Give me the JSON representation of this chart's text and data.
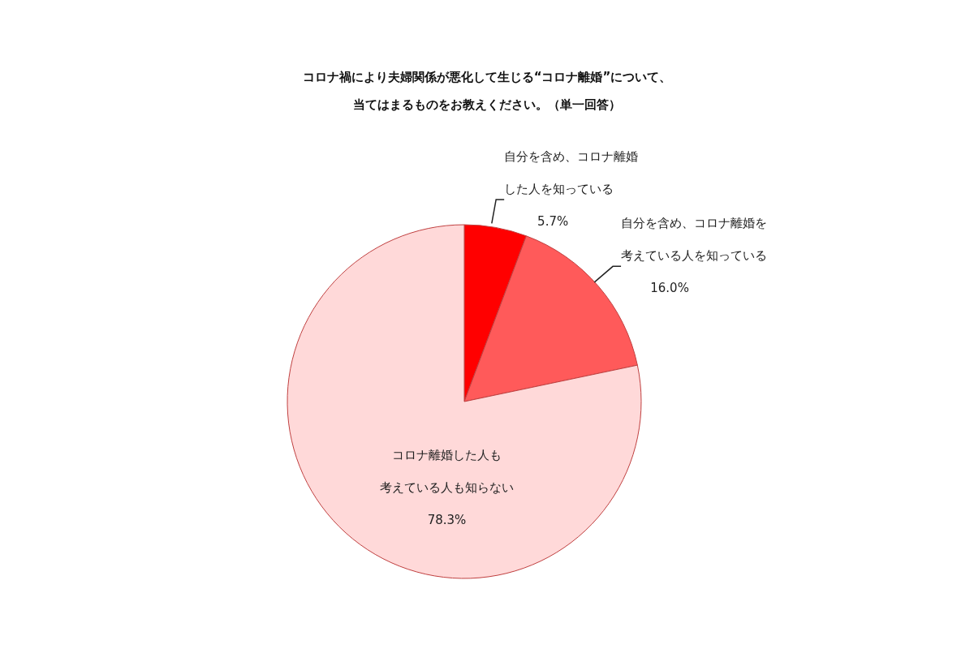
{
  "chart_data": {
    "type": "pie",
    "title": "コロナ禍により夫婦関係が悪化して生じる“コロナ離婚”について、当てはまるものをお教えください。（単一回答）",
    "categories": [
      "自分を含め、コロナ離婚した人を知っている",
      "自分を含め、コロナ離婚を考えている人を知っている",
      "コロナ離婚した人も考えている人も知らない"
    ],
    "values": [
      5.7,
      16.0,
      78.3
    ],
    "value_labels": [
      "5.7%",
      "16.0%",
      "78.3%"
    ],
    "colors": [
      "#ff0000",
      "#ff5a5a",
      "#ffd9d9"
    ]
  }
}
